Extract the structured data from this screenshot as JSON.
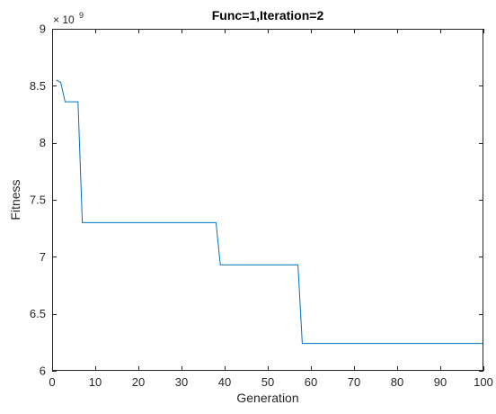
{
  "chart_data": {
    "type": "line",
    "title": "Func=1,Iteration=2",
    "xlabel": "Generation",
    "ylabel": "Fitness",
    "y_exponent_base": "× 10",
    "y_exponent_power": "9",
    "xlim": [
      0,
      100
    ],
    "ylim": [
      6,
      9
    ],
    "xticks": [
      "0",
      "10",
      "20",
      "30",
      "40",
      "50",
      "60",
      "70",
      "80",
      "90",
      "100"
    ],
    "yticks": [
      "6",
      "6.5",
      "7",
      "7.5",
      "8",
      "8.5",
      "9"
    ],
    "grid": false,
    "series": [
      {
        "color": "#0072bd",
        "x": [
          1,
          2,
          3,
          4,
          5,
          6,
          7,
          8,
          38,
          39,
          40,
          57,
          58,
          59,
          100
        ],
        "y": [
          8.55,
          8.53,
          8.36,
          8.36,
          8.36,
          8.36,
          7.3,
          7.3,
          7.3,
          6.93,
          6.93,
          6.93,
          6.24,
          6.24,
          6.24
        ]
      }
    ]
  }
}
